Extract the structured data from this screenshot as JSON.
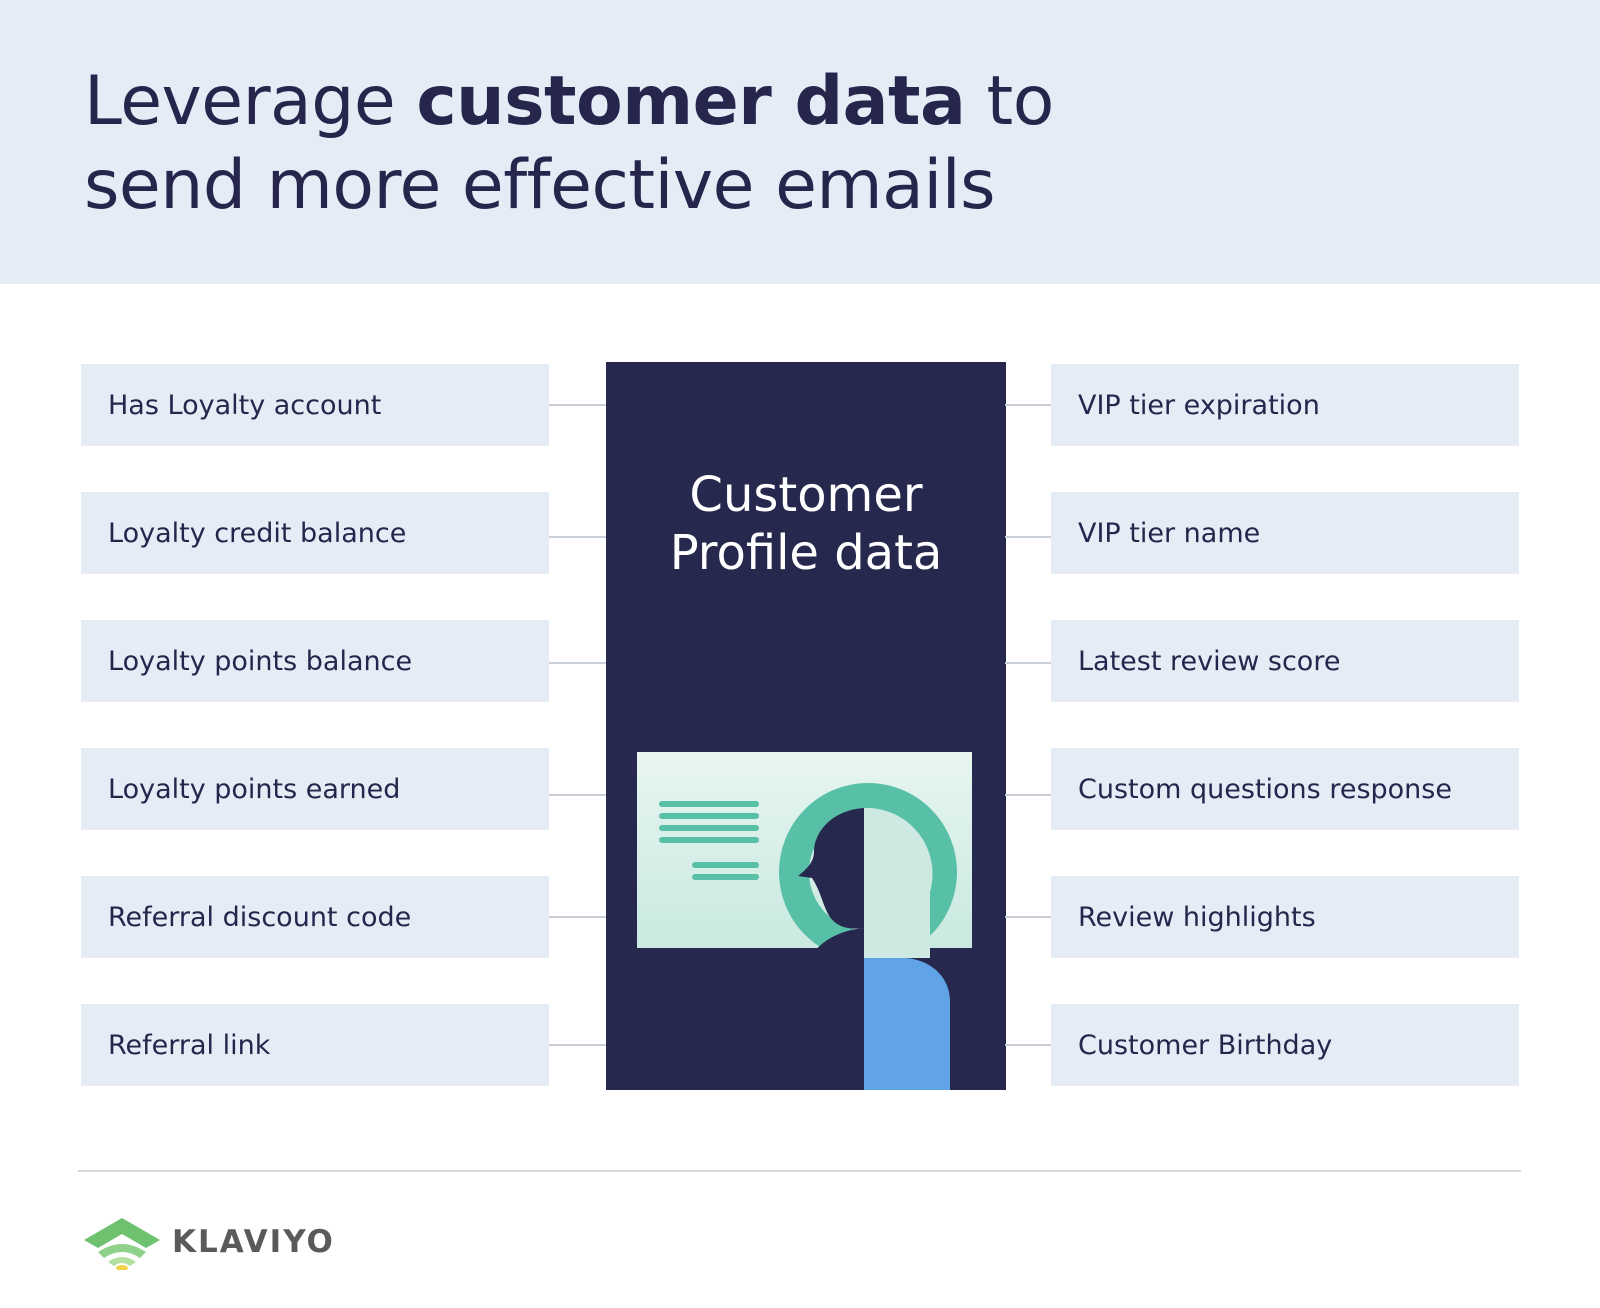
{
  "header": {
    "title_part1": "Leverage ",
    "title_bold": "customer data",
    "title_part2": " to",
    "title_line2": "send more effective emails"
  },
  "left_items": [
    "Has Loyalty account",
    "Loyalty credit balance",
    "Loyalty points balance",
    "Loyalty points earned",
    "Referral discount code",
    "Referral link"
  ],
  "center": {
    "title_line1": "Customer",
    "title_line2": "Profile data"
  },
  "right_items": [
    "VIP tier expiration",
    "VIP tier name",
    "Latest review score",
    "Custom questions response",
    "Review highlights",
    "Customer Birthday"
  ],
  "footer": {
    "logo_text": "KLAVIYO"
  },
  "colors": {
    "navy": "#27284d",
    "light_blue_bg": "#e6ecf6",
    "teal": "#58c0a6",
    "mint": "#d3ede6",
    "blue": "#60a3e6",
    "logo_green": "#6ec26f",
    "logo_yellow": "#f2d24a"
  }
}
